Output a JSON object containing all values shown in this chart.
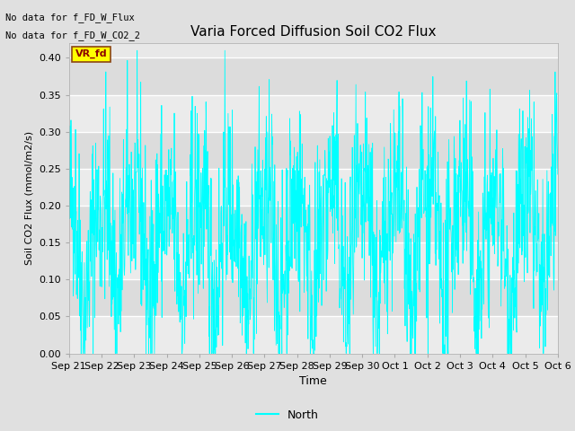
{
  "title": "Varia Forced Diffusion Soil CO2 Flux",
  "xlabel": "Time",
  "ylabel": "Soil CO2 Flux (mmol/m2/s)",
  "ylim": [
    0.0,
    0.42
  ],
  "yticks": [
    0.0,
    0.05,
    0.1,
    0.15,
    0.2,
    0.25,
    0.3,
    0.35,
    0.4
  ],
  "line_color": "cyan",
  "fig_bg_color": "#e0e0e0",
  "plot_bg_color": "#e8e8e8",
  "annotation_text1": "No data for f_FD_W_Flux",
  "annotation_text2": "No data for f_FD_W_CO2_2",
  "legend_box_label": "VR_fd",
  "legend_box_facecolor": "yellow",
  "legend_box_textcolor": "#8b0000",
  "legend_line_label": "North",
  "xtick_labels": [
    "Sep 21",
    "Sep 22",
    "Sep 23",
    "Sep 24",
    "Sep 25",
    "Sep 26",
    "Sep 27",
    "Sep 28",
    "Sep 29",
    "Sep 30",
    "Oct 1",
    "Oct 2",
    "Oct 3",
    "Oct 4",
    "Oct 5",
    "Oct 6"
  ],
  "seed": 42
}
